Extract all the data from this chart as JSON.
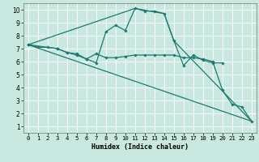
{
  "xlabel": "Humidex (Indice chaleur)",
  "xlim": [
    -0.5,
    23.5
  ],
  "ylim": [
    0.5,
    10.5
  ],
  "xticks": [
    0,
    1,
    2,
    3,
    4,
    5,
    6,
    7,
    8,
    9,
    10,
    11,
    12,
    13,
    14,
    15,
    16,
    17,
    18,
    19,
    20,
    21,
    22,
    23
  ],
  "yticks": [
    1,
    2,
    3,
    4,
    5,
    6,
    7,
    8,
    9,
    10
  ],
  "bg_color": "#c8e8e0",
  "line_color": "#1a7a6e",
  "grid_color": "#ffffff",
  "series": [
    {
      "x": [
        0,
        1,
        2,
        3,
        4,
        5,
        6,
        7,
        8,
        9,
        10,
        11,
        12,
        13,
        14,
        15,
        16,
        17,
        18,
        19,
        20
      ],
      "y": [
        7.3,
        7.1,
        7.1,
        7.0,
        6.7,
        6.6,
        6.2,
        5.9,
        8.3,
        8.8,
        8.4,
        10.1,
        9.9,
        9.9,
        9.7,
        7.6,
        5.7,
        6.5,
        6.1,
        5.9,
        5.9
      ]
    },
    {
      "x": [
        0,
        3,
        4,
        5,
        6,
        7,
        8,
        9,
        10,
        11,
        12,
        13,
        14,
        15,
        16,
        17,
        18,
        19,
        20,
        21,
        22,
        23
      ],
      "y": [
        7.3,
        7.0,
        6.7,
        6.5,
        6.2,
        6.6,
        6.3,
        6.3,
        6.4,
        6.5,
        6.5,
        6.5,
        6.5,
        6.5,
        6.3,
        6.3,
        6.2,
        6.0,
        3.8,
        2.7,
        2.5,
        1.4
      ]
    },
    {
      "x": [
        0,
        23
      ],
      "y": [
        7.3,
        1.4
      ],
      "no_marker": true
    },
    {
      "comment": "upper envelope line: 0->7.3, peaks at 11->10.1, 14->9.7, drops to 23->1.4",
      "x": [
        0,
        11,
        14,
        15,
        23
      ],
      "y": [
        7.3,
        10.1,
        9.7,
        7.6,
        1.4
      ],
      "no_marker": true
    }
  ]
}
